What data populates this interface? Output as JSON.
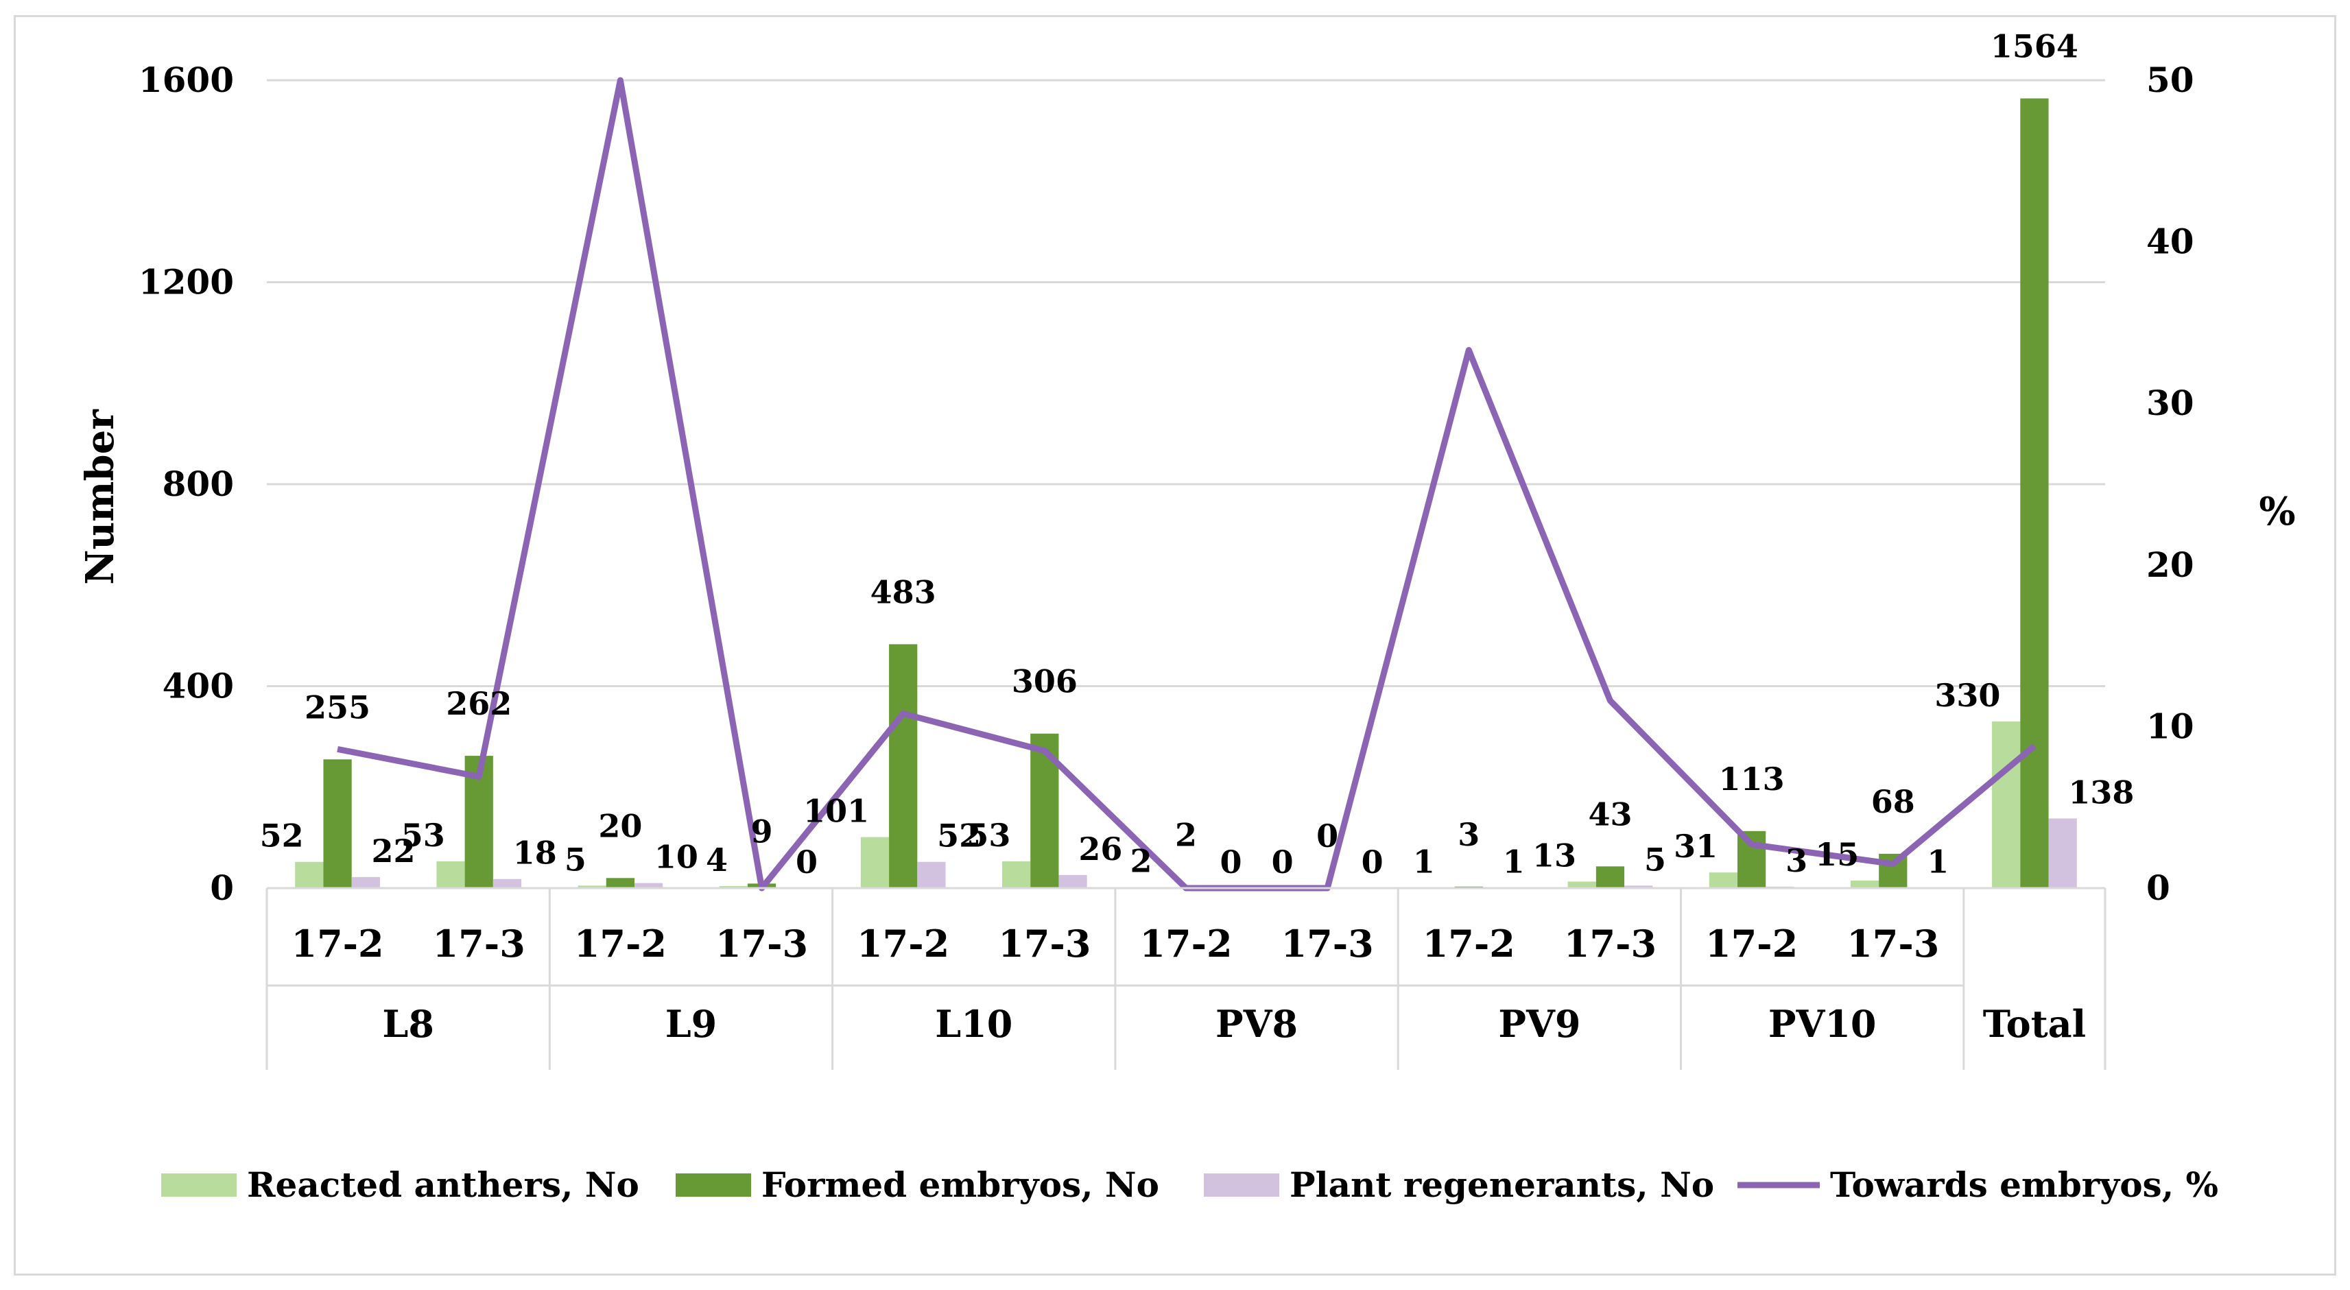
{
  "chart_data": {
    "type": "bar",
    "combo": "clustered bars on left axis + line on right axis",
    "title": "",
    "ylabel": "Number",
    "y2label": "%",
    "ylim": [
      0,
      1600
    ],
    "y2lim": [
      0,
      50
    ],
    "yticks": [
      "0",
      "400",
      "800",
      "1200",
      "1600"
    ],
    "y2ticks": [
      "0",
      "10",
      "20",
      "30",
      "40",
      "50"
    ],
    "groups": [
      {
        "name": "L8",
        "categories": [
          "17-2",
          "17-3"
        ]
      },
      {
        "name": "L9",
        "categories": [
          "17-2",
          "17-3"
        ]
      },
      {
        "name": "L10",
        "categories": [
          "17-2",
          "17-3"
        ]
      },
      {
        "name": "PV8",
        "categories": [
          "17-2",
          "17-3"
        ]
      },
      {
        "name": "PV9",
        "categories": [
          "17-2",
          "17-3"
        ]
      },
      {
        "name": "PV10",
        "categories": [
          "17-2",
          "17-3"
        ]
      },
      {
        "name": "Total",
        "categories": [
          ""
        ]
      }
    ],
    "series": [
      {
        "name": "Reacted anthers, No",
        "kind": "bar",
        "axis": "left",
        "color": "#b7dc9c",
        "values": [
          52,
          53,
          5,
          4,
          101,
          53,
          2,
          0,
          1,
          13,
          31,
          15,
          330
        ]
      },
      {
        "name": "Formed embryos, No",
        "kind": "bar",
        "axis": "left",
        "color": "#679a34",
        "values": [
          255,
          262,
          20,
          9,
          483,
          306,
          2,
          0,
          3,
          43,
          113,
          68,
          1564
        ]
      },
      {
        "name": "Plant regenerants, No",
        "kind": "bar",
        "axis": "left",
        "color": "#d2c2e0",
        "values": [
          22,
          18,
          10,
          0,
          52,
          26,
          0,
          0,
          1,
          5,
          3,
          1,
          138
        ]
      },
      {
        "name": "Towards embryos, %",
        "kind": "line",
        "axis": "right",
        "color": "#8c64b4",
        "values": [
          8.6,
          6.9,
          50.0,
          0,
          10.8,
          8.5,
          0,
          0,
          33.3,
          11.6,
          2.7,
          1.5,
          8.8
        ]
      }
    ],
    "legend_position": "bottom"
  }
}
